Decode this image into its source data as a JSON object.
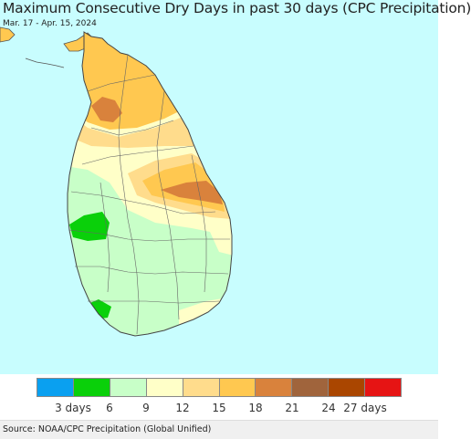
{
  "title": "Maximum Consecutive Dry Days in past 30 days (CPC Precipitation)",
  "date_range": "Mar. 17 - Apr. 15, 2024",
  "legend": {
    "colors": [
      "#0aa0f0",
      "#0ad00a",
      "#c8ffc8",
      "#ffffc8",
      "#ffdc8c",
      "#ffc850",
      "#d9823c",
      "#a0643c",
      "#aa4600",
      "#e61414"
    ],
    "labels": [
      "3 days",
      "6",
      "9",
      "12",
      "15",
      "18",
      "21",
      "24",
      "27 days"
    ]
  },
  "source": "Source: NOAA/CPC Precipitation (Global Unified)",
  "colors": {
    "sea": "#c8fdfe",
    "land_border": "#555555"
  }
}
